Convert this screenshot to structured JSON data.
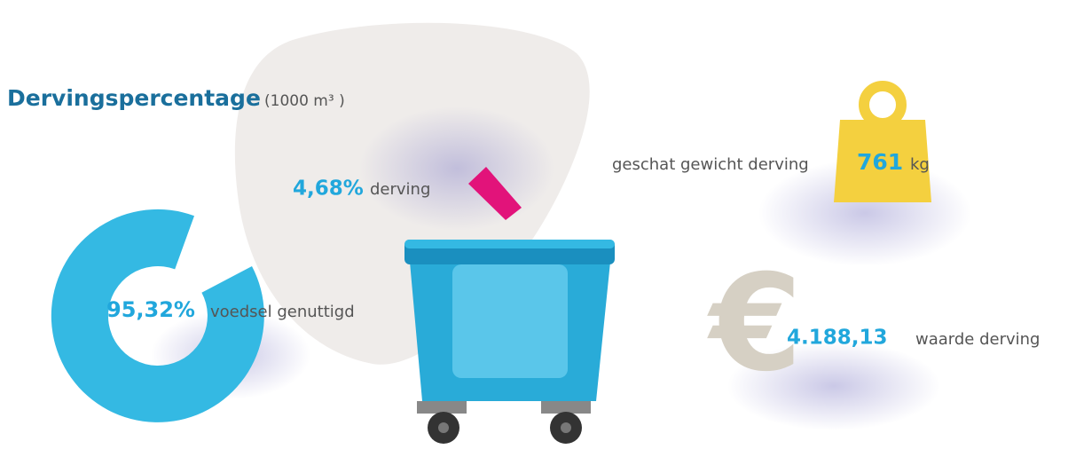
{
  "title": {
    "label": "Dervingspercentage",
    "unit": "(1000 m³ )"
  },
  "waste": {
    "value": "4,68%",
    "label": "derving"
  },
  "used": {
    "value": "95,32%",
    "label": "voedsel genuttigd"
  },
  "weight": {
    "label": "geschat gewicht derving",
    "value": "761",
    "unit": "kg"
  },
  "cost": {
    "symbol": "€",
    "value": "4.188,13",
    "label": "waarde derving"
  }
}
